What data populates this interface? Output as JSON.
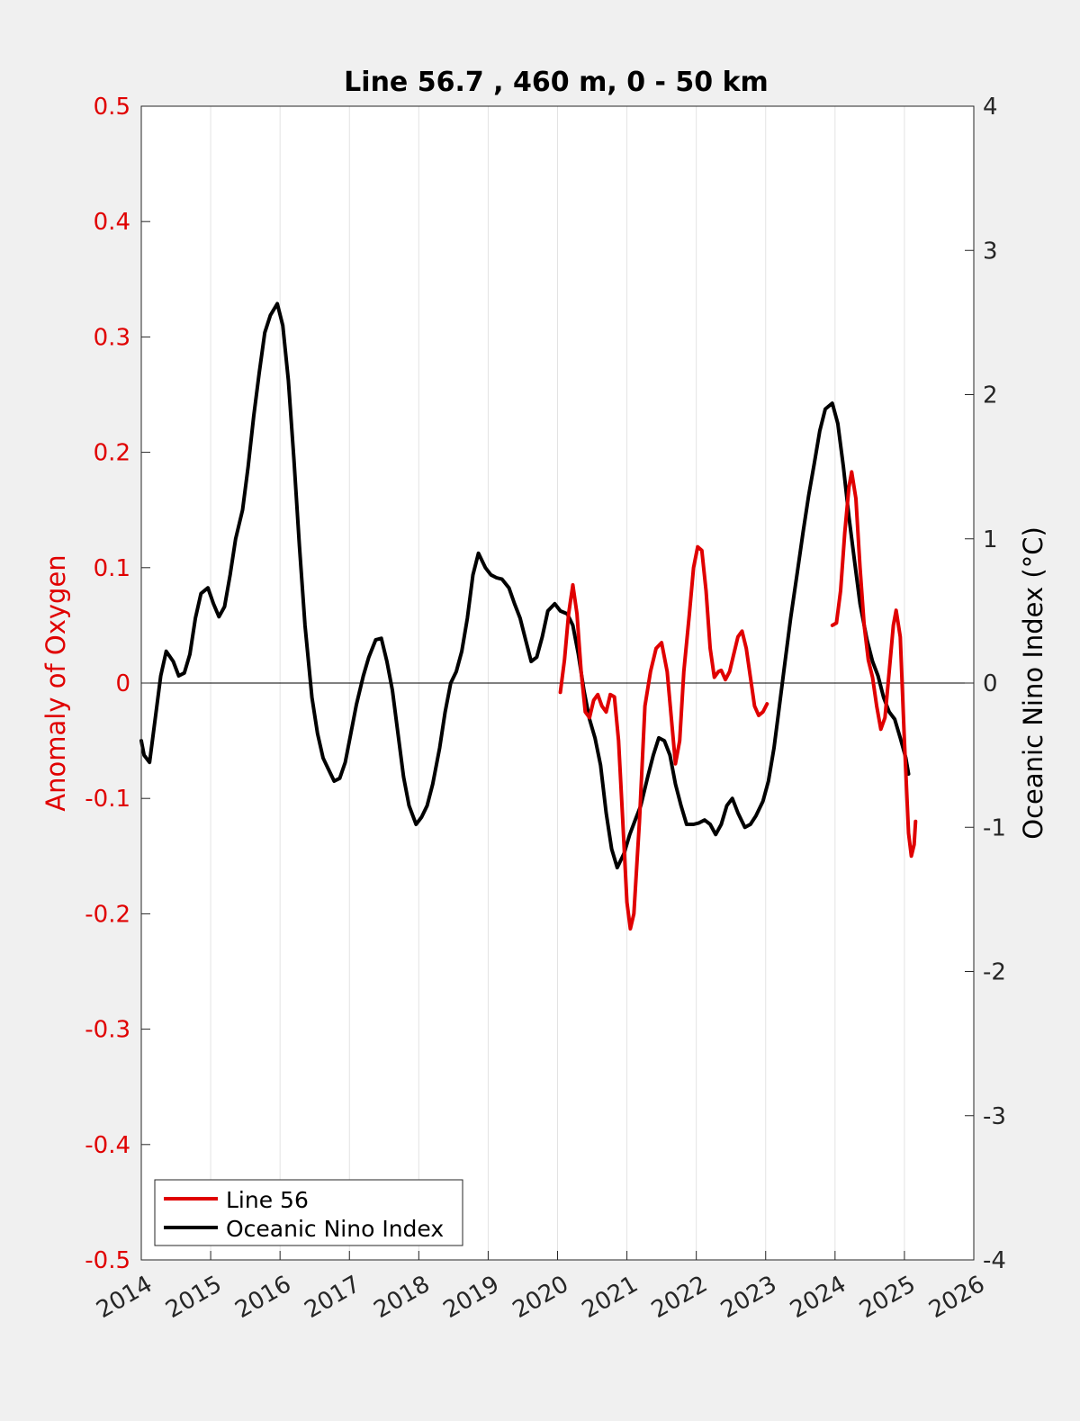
{
  "chart_data": {
    "type": "line",
    "title": "Line 56.7 , 460 m, 0 - 50 km",
    "xlabel": "",
    "ylabel_left": "Anomaly of Oxygen",
    "ylabel_right": "Oceanic Nino Index (°C)",
    "xlim": [
      2014,
      2026
    ],
    "ylim_left": [
      -0.5,
      0.5
    ],
    "ylim_right": [
      -4,
      4
    ],
    "x_ticks": [
      "2014",
      "2015",
      "2016",
      "2017",
      "2018",
      "2019",
      "2020",
      "2021",
      "2022",
      "2023",
      "2024",
      "2025",
      "2026"
    ],
    "y_ticks_left": [
      "-0.5",
      "-0.4",
      "-0.3",
      "-0.2",
      "-0.1",
      "0",
      "0.1",
      "0.2",
      "0.3",
      "0.4",
      "0.5"
    ],
    "y_ticks_right": [
      "-4",
      "-3",
      "-2",
      "-1",
      "0",
      "1",
      "2",
      "3",
      "4"
    ],
    "grid": "vertical",
    "legend_position": "bottom-left",
    "zero_line": true,
    "colors": {
      "left_axis": "#e00000",
      "right_axis": "#000000",
      "background": "#f0f0f0",
      "plot_bg": "#ffffff",
      "grid": "#e0e0e0"
    },
    "series": [
      {
        "name": "Line 56",
        "axis": "left",
        "color": "#e00000",
        "segments": [
          [
            [
              2020.04,
              -0.008
            ],
            [
              2020.1,
              0.02
            ],
            [
              2020.16,
              0.06
            ],
            [
              2020.22,
              0.085
            ],
            [
              2020.28,
              0.06
            ],
            [
              2020.34,
              0.01
            ],
            [
              2020.4,
              -0.025
            ],
            [
              2020.46,
              -0.03
            ],
            [
              2020.52,
              -0.015
            ],
            [
              2020.58,
              -0.01
            ],
            [
              2020.64,
              -0.02
            ],
            [
              2020.7,
              -0.025
            ],
            [
              2020.76,
              -0.01
            ],
            [
              2020.82,
              -0.012
            ],
            [
              2020.88,
              -0.05
            ],
            [
              2020.94,
              -0.12
            ],
            [
              2021.0,
              -0.19
            ],
            [
              2021.05,
              -0.213
            ],
            [
              2021.1,
              -0.2
            ],
            [
              2021.18,
              -0.12
            ],
            [
              2021.26,
              -0.02
            ],
            [
              2021.34,
              0.01
            ],
            [
              2021.42,
              0.03
            ],
            [
              2021.5,
              0.035
            ],
            [
              2021.58,
              0.01
            ],
            [
              2021.64,
              -0.03
            ],
            [
              2021.7,
              -0.07
            ],
            [
              2021.76,
              -0.05
            ],
            [
              2021.82,
              0.01
            ],
            [
              2021.9,
              0.06
            ],
            [
              2021.96,
              0.1
            ],
            [
              2022.02,
              0.118
            ],
            [
              2022.08,
              0.115
            ],
            [
              2022.14,
              0.08
            ],
            [
              2022.2,
              0.03
            ],
            [
              2022.26,
              0.005
            ],
            [
              2022.32,
              0.01
            ],
            [
              2022.36,
              0.011
            ],
            [
              2022.42,
              0.003
            ],
            [
              2022.48,
              0.01
            ],
            [
              2022.54,
              0.025
            ],
            [
              2022.6,
              0.04
            ],
            [
              2022.66,
              0.045
            ],
            [
              2022.72,
              0.03
            ],
            [
              2022.78,
              0.005
            ],
            [
              2022.84,
              -0.02
            ],
            [
              2022.9,
              -0.028
            ],
            [
              2022.96,
              -0.025
            ],
            [
              2023.02,
              -0.018
            ]
          ],
          [
            [
              2023.96,
              0.05
            ],
            [
              2024.02,
              0.052
            ],
            [
              2024.08,
              0.08
            ],
            [
              2024.14,
              0.13
            ],
            [
              2024.2,
              0.17
            ],
            [
              2024.24,
              0.183
            ],
            [
              2024.3,
              0.16
            ],
            [
              2024.36,
              0.1
            ],
            [
              2024.42,
              0.05
            ],
            [
              2024.48,
              0.02
            ],
            [
              2024.54,
              0.005
            ],
            [
              2024.6,
              -0.02
            ],
            [
              2024.66,
              -0.04
            ],
            [
              2024.72,
              -0.03
            ],
            [
              2024.78,
              0.01
            ],
            [
              2024.84,
              0.05
            ],
            [
              2024.88,
              0.063
            ],
            [
              2024.94,
              0.04
            ],
            [
              2025.0,
              -0.05
            ],
            [
              2025.06,
              -0.13
            ],
            [
              2025.1,
              -0.15
            ],
            [
              2025.14,
              -0.14
            ],
            [
              2025.16,
              -0.12
            ]
          ]
        ]
      },
      {
        "name": "Oceanic Nino Index",
        "axis": "right",
        "color": "#000000",
        "segments": [
          [
            [
              2014.0,
              -0.4
            ],
            [
              2014.04,
              -0.5
            ],
            [
              2014.12,
              -0.55
            ],
            [
              2014.2,
              -0.25
            ],
            [
              2014.28,
              0.05
            ],
            [
              2014.36,
              0.22
            ],
            [
              2014.46,
              0.15
            ],
            [
              2014.54,
              0.05
            ],
            [
              2014.62,
              0.07
            ],
            [
              2014.7,
              0.2
            ],
            [
              2014.78,
              0.45
            ],
            [
              2014.86,
              0.62
            ],
            [
              2014.96,
              0.66
            ],
            [
              2015.04,
              0.55
            ],
            [
              2015.12,
              0.46
            ],
            [
              2015.2,
              0.53
            ],
            [
              2015.28,
              0.75
            ],
            [
              2015.36,
              1.0
            ],
            [
              2015.46,
              1.2
            ],
            [
              2015.54,
              1.5
            ],
            [
              2015.62,
              1.85
            ],
            [
              2015.7,
              2.15
            ],
            [
              2015.78,
              2.43
            ],
            [
              2015.86,
              2.55
            ],
            [
              2015.96,
              2.63
            ],
            [
              2016.04,
              2.48
            ],
            [
              2016.12,
              2.1
            ],
            [
              2016.2,
              1.55
            ],
            [
              2016.28,
              0.95
            ],
            [
              2016.36,
              0.4
            ],
            [
              2016.46,
              -0.1
            ],
            [
              2016.54,
              -0.35
            ],
            [
              2016.62,
              -0.52
            ],
            [
              2016.7,
              -0.6
            ],
            [
              2016.78,
              -0.68
            ],
            [
              2016.86,
              -0.66
            ],
            [
              2016.94,
              -0.55
            ],
            [
              2017.02,
              -0.35
            ],
            [
              2017.1,
              -0.15
            ],
            [
              2017.2,
              0.05
            ],
            [
              2017.28,
              0.18
            ],
            [
              2017.38,
              0.3
            ],
            [
              2017.46,
              0.31
            ],
            [
              2017.54,
              0.15
            ],
            [
              2017.62,
              -0.05
            ],
            [
              2017.7,
              -0.35
            ],
            [
              2017.78,
              -0.65
            ],
            [
              2017.86,
              -0.85
            ],
            [
              2017.96,
              -0.98
            ],
            [
              2018.04,
              -0.93
            ],
            [
              2018.12,
              -0.85
            ],
            [
              2018.2,
              -0.7
            ],
            [
              2018.3,
              -0.45
            ],
            [
              2018.38,
              -0.2
            ],
            [
              2018.46,
              0.0
            ],
            [
              2018.54,
              0.08
            ],
            [
              2018.62,
              0.22
            ],
            [
              2018.7,
              0.45
            ],
            [
              2018.78,
              0.75
            ],
            [
              2018.86,
              0.9
            ],
            [
              2018.96,
              0.8
            ],
            [
              2019.04,
              0.75
            ],
            [
              2019.12,
              0.73
            ],
            [
              2019.2,
              0.72
            ],
            [
              2019.3,
              0.66
            ],
            [
              2019.38,
              0.55
            ],
            [
              2019.46,
              0.45
            ],
            [
              2019.54,
              0.3
            ],
            [
              2019.62,
              0.15
            ],
            [
              2019.7,
              0.18
            ],
            [
              2019.78,
              0.32
            ],
            [
              2019.86,
              0.5
            ],
            [
              2019.96,
              0.55
            ],
            [
              2020.04,
              0.5
            ],
            [
              2020.14,
              0.48
            ],
            [
              2020.22,
              0.4
            ],
            [
              2020.3,
              0.2
            ],
            [
              2020.38,
              -0.05
            ],
            [
              2020.46,
              -0.25
            ],
            [
              2020.54,
              -0.38
            ],
            [
              2020.62,
              -0.57
            ],
            [
              2020.7,
              -0.9
            ],
            [
              2020.78,
              -1.15
            ],
            [
              2020.86,
              -1.28
            ],
            [
              2020.96,
              -1.18
            ],
            [
              2021.04,
              -1.05
            ],
            [
              2021.12,
              -0.95
            ],
            [
              2021.2,
              -0.85
            ],
            [
              2021.3,
              -0.65
            ],
            [
              2021.38,
              -0.5
            ],
            [
              2021.46,
              -0.38
            ],
            [
              2021.54,
              -0.4
            ],
            [
              2021.62,
              -0.5
            ],
            [
              2021.7,
              -0.7
            ],
            [
              2021.78,
              -0.85
            ],
            [
              2021.86,
              -0.98
            ],
            [
              2021.96,
              -0.98
            ],
            [
              2022.04,
              -0.97
            ],
            [
              2022.12,
              -0.95
            ],
            [
              2022.2,
              -0.98
            ],
            [
              2022.28,
              -1.05
            ],
            [
              2022.36,
              -0.98
            ],
            [
              2022.44,
              -0.85
            ],
            [
              2022.52,
              -0.8
            ],
            [
              2022.6,
              -0.9
            ],
            [
              2022.7,
              -1.0
            ],
            [
              2022.78,
              -0.98
            ],
            [
              2022.86,
              -0.92
            ],
            [
              2022.96,
              -0.82
            ],
            [
              2023.04,
              -0.68
            ],
            [
              2023.12,
              -0.45
            ],
            [
              2023.2,
              -0.15
            ],
            [
              2023.28,
              0.15
            ],
            [
              2023.36,
              0.45
            ],
            [
              2023.46,
              0.78
            ],
            [
              2023.54,
              1.05
            ],
            [
              2023.62,
              1.3
            ],
            [
              2023.7,
              1.52
            ],
            [
              2023.78,
              1.75
            ],
            [
              2023.86,
              1.9
            ],
            [
              2023.96,
              1.94
            ],
            [
              2024.04,
              1.8
            ],
            [
              2024.12,
              1.5
            ],
            [
              2024.2,
              1.15
            ],
            [
              2024.28,
              0.85
            ],
            [
              2024.36,
              0.55
            ],
            [
              2024.46,
              0.3
            ],
            [
              2024.54,
              0.15
            ],
            [
              2024.62,
              0.05
            ],
            [
              2024.7,
              -0.1
            ],
            [
              2024.78,
              -0.2
            ],
            [
              2024.86,
              -0.25
            ],
            [
              2024.94,
              -0.38
            ],
            [
              2025.02,
              -0.52
            ],
            [
              2025.06,
              -0.63
            ]
          ]
        ]
      }
    ]
  }
}
